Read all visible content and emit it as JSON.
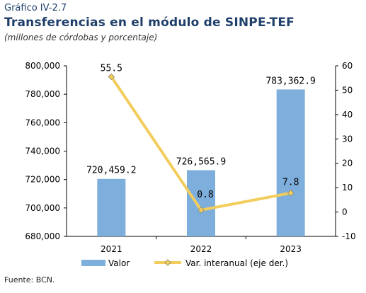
{
  "header": {
    "label": "Gráfico IV-2.7",
    "title": "Transferencias en el módulo de SINPE-TEF",
    "subtitle": "(millones de córdobas y porcentaje)"
  },
  "footer": {
    "source": "Fuente: BCN."
  },
  "colors": {
    "bar": "#7eaedb",
    "line": "#f2cd5e",
    "title": "#1f3f6b"
  },
  "chart_data": {
    "type": "bar",
    "categories": [
      "2021",
      "2022",
      "2023"
    ],
    "series": [
      {
        "name": "Valor",
        "type": "bar",
        "axis": "left",
        "values": [
          720459.2,
          726565.9,
          783362.9
        ],
        "labels": [
          "720,459.2",
          "726,565.9",
          "783,362.9"
        ]
      },
      {
        "name": "Var. interanual (eje der.)",
        "type": "line",
        "axis": "right",
        "values": [
          55.5,
          0.8,
          7.8
        ],
        "labels": [
          "55.5",
          "0.8",
          "7.8"
        ]
      }
    ],
    "y_left": {
      "lim": [
        680000,
        800000
      ],
      "ticks": [
        "680,000",
        "700,000",
        "720,000",
        "740,000",
        "760,000",
        "780,000",
        "800,000"
      ]
    },
    "y_right": {
      "lim": [
        -10,
        60
      ],
      "ticks": [
        "-10",
        "0",
        "10",
        "20",
        "30",
        "40",
        "50",
        "60"
      ]
    },
    "grid": false,
    "legend": "bottom"
  }
}
